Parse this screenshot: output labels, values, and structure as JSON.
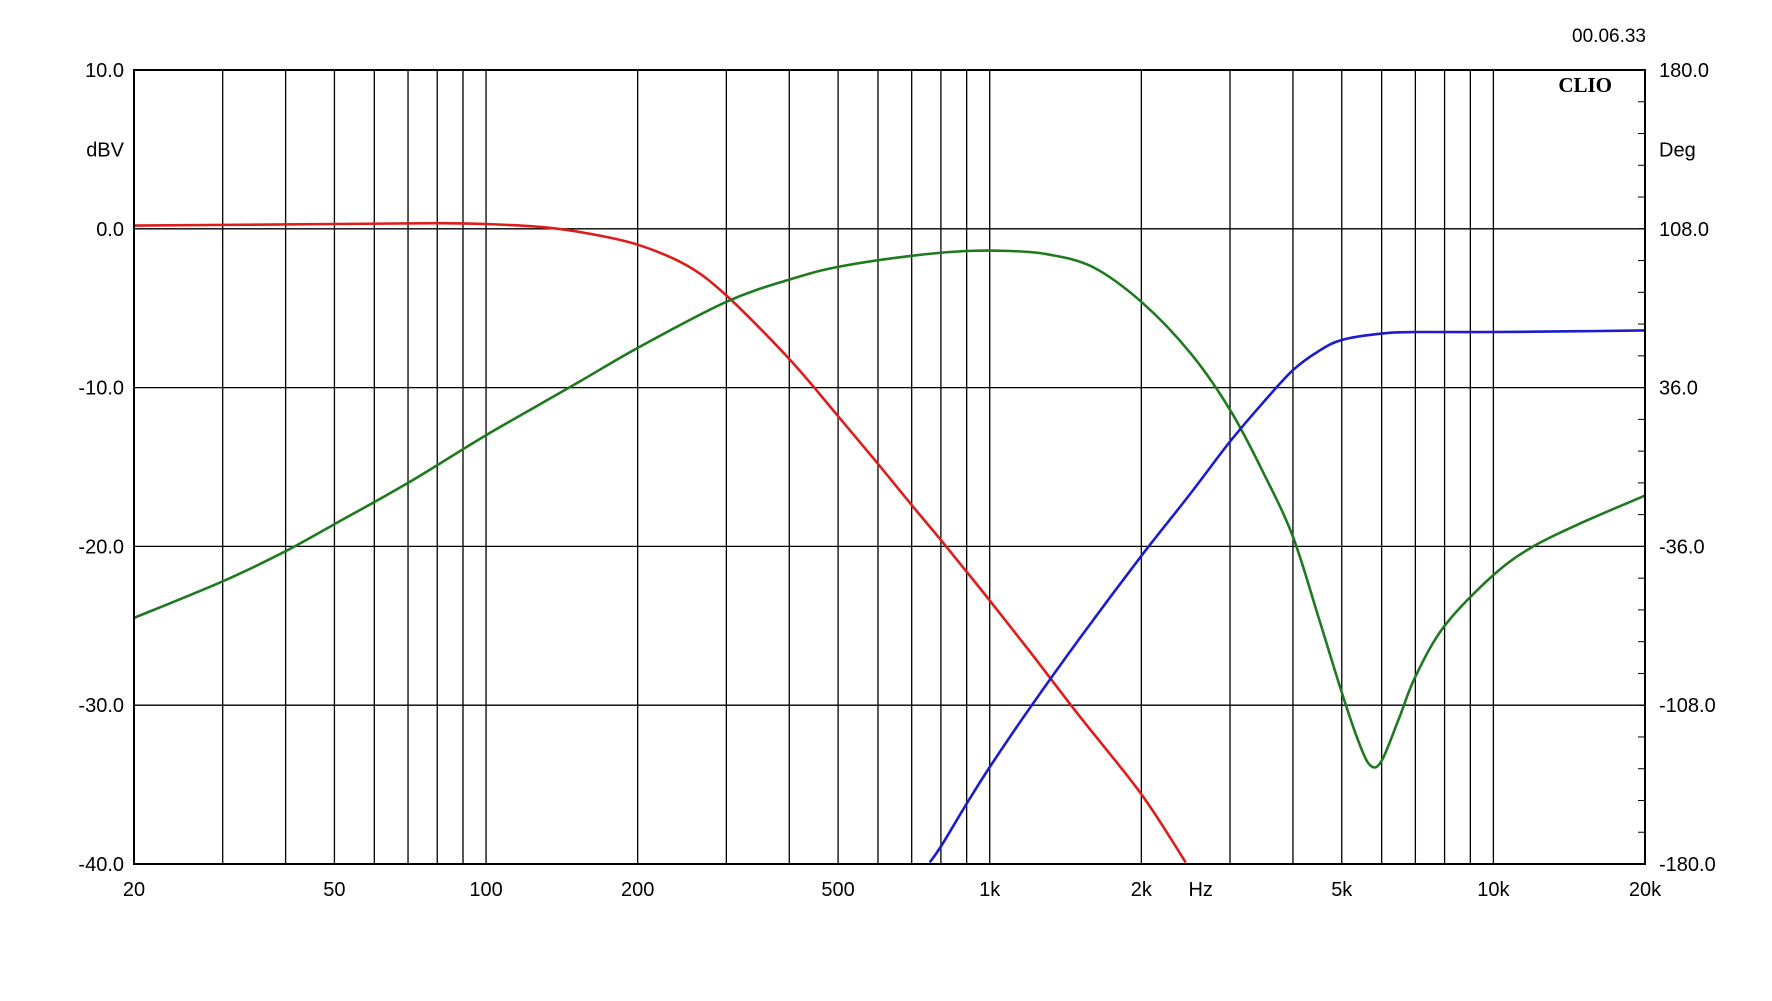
{
  "header": {
    "timestamp": "00.06.33",
    "brand": "CLIO"
  },
  "chart_data": {
    "type": "line",
    "xscale": "log",
    "xlim": [
      20,
      20000
    ],
    "ylim": [
      -40,
      10
    ],
    "y2lim": [
      -180,
      180
    ],
    "grid": true,
    "left_axis_unit": "dBV",
    "right_axis_unit": "Deg",
    "x_unit": "Hz",
    "x_ticks": [
      {
        "value": 20,
        "label": "20"
      },
      {
        "value": 50,
        "label": "50"
      },
      {
        "value": 100,
        "label": "100"
      },
      {
        "value": 200,
        "label": "200"
      },
      {
        "value": 500,
        "label": "500"
      },
      {
        "value": 1000,
        "label": "1k"
      },
      {
        "value": 2000,
        "label": "2k"
      },
      {
        "value": 5000,
        "label": "5k"
      },
      {
        "value": 10000,
        "label": "10k"
      },
      {
        "value": 20000,
        "label": "20k"
      }
    ],
    "y_ticks": [
      {
        "value": 10,
        "label": "10.0"
      },
      {
        "value": 0,
        "label": "0.0"
      },
      {
        "value": -10,
        "label": "-10.0"
      },
      {
        "value": -20,
        "label": "-20.0"
      },
      {
        "value": -30,
        "label": "-30.0"
      },
      {
        "value": -40,
        "label": "-40.0"
      }
    ],
    "y2_ticks": [
      {
        "value": 180,
        "label": "180.0"
      },
      {
        "value": 108,
        "label": "108.0"
      },
      {
        "value": 36,
        "label": "36.0"
      },
      {
        "value": -36,
        "label": "-36.0"
      },
      {
        "value": -108,
        "label": "-108.0"
      },
      {
        "value": -180,
        "label": "-180.0"
      }
    ],
    "series": [
      {
        "color": "#dd1c1c",
        "points": [
          [
            20,
            0.2
          ],
          [
            50,
            0.3
          ],
          [
            80,
            0.35
          ],
          [
            100,
            0.3
          ],
          [
            130,
            0.1
          ],
          [
            160,
            -0.3
          ],
          [
            200,
            -1.0
          ],
          [
            250,
            -2.3
          ],
          [
            300,
            -4.2
          ],
          [
            400,
            -8.2
          ],
          [
            500,
            -11.8
          ],
          [
            600,
            -14.8
          ],
          [
            700,
            -17.4
          ],
          [
            800,
            -19.6
          ],
          [
            900,
            -21.6
          ],
          [
            1000,
            -23.4
          ],
          [
            1200,
            -26.6
          ],
          [
            1500,
            -30.6
          ],
          [
            2000,
            -35.6
          ],
          [
            2450,
            -39.9
          ]
        ]
      },
      {
        "color": "#1f7a1f",
        "points": [
          [
            20,
            -24.5
          ],
          [
            30,
            -22.2
          ],
          [
            40,
            -20.3
          ],
          [
            50,
            -18.6
          ],
          [
            70,
            -16.0
          ],
          [
            100,
            -13.0
          ],
          [
            150,
            -9.8
          ],
          [
            200,
            -7.5
          ],
          [
            300,
            -4.6
          ],
          [
            400,
            -3.2
          ],
          [
            500,
            -2.4
          ],
          [
            700,
            -1.7
          ],
          [
            900,
            -1.4
          ],
          [
            1100,
            -1.4
          ],
          [
            1300,
            -1.6
          ],
          [
            1600,
            -2.4
          ],
          [
            2000,
            -4.6
          ],
          [
            2500,
            -7.8
          ],
          [
            3000,
            -11.4
          ],
          [
            3500,
            -15.4
          ],
          [
            4000,
            -19.4
          ],
          [
            4500,
            -24.5
          ],
          [
            5000,
            -29.2
          ],
          [
            5400,
            -32.3
          ],
          [
            5700,
            -33.8
          ],
          [
            6000,
            -33.5
          ],
          [
            6500,
            -30.8
          ],
          [
            7000,
            -28.2
          ],
          [
            8000,
            -25.0
          ],
          [
            10000,
            -21.8
          ],
          [
            12000,
            -20.0
          ],
          [
            15000,
            -18.5
          ],
          [
            20000,
            -16.8
          ]
        ]
      },
      {
        "color": "#1c1ccc",
        "points": [
          [
            760,
            -39.9
          ],
          [
            800,
            -38.9
          ],
          [
            900,
            -36.2
          ],
          [
            1000,
            -33.9
          ],
          [
            1200,
            -30.2
          ],
          [
            1500,
            -25.9
          ],
          [
            2000,
            -20.6
          ],
          [
            2500,
            -16.7
          ],
          [
            3000,
            -13.4
          ],
          [
            3500,
            -10.9
          ],
          [
            4000,
            -8.9
          ],
          [
            4500,
            -7.7
          ],
          [
            5000,
            -7.0
          ],
          [
            6000,
            -6.6
          ],
          [
            7000,
            -6.5
          ],
          [
            10000,
            -6.5
          ],
          [
            15000,
            -6.45
          ],
          [
            20000,
            -6.4
          ]
        ]
      }
    ]
  }
}
